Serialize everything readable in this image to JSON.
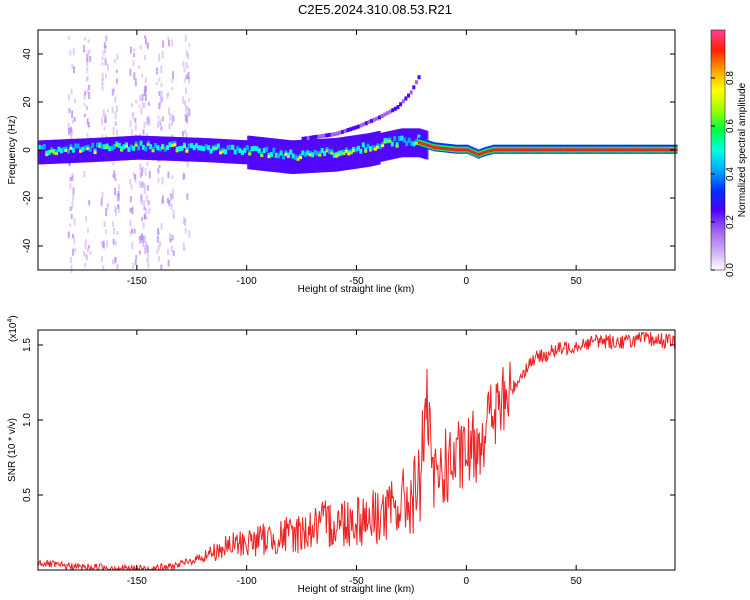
{
  "title": "C2E5.2024.310.08.53.R21",
  "colors": {
    "snr_line": "#ee2222",
    "ridge": "#ff1a1a",
    "colormap": [
      "#ffffff",
      "#c9a9f5",
      "#a060f0",
      "#4b00ff",
      "#0030ff",
      "#00aaff",
      "#00ffe0",
      "#00ff40",
      "#a0ff00",
      "#ffff00",
      "#ffa000",
      "#ff2000",
      "#ff40a0"
    ]
  },
  "chart_data": [
    {
      "type": "heatmap",
      "xlabel": "Height of straight line (km)",
      "ylabel": "Frequency (Hz)",
      "xlim": [
        -195,
        95
      ],
      "ylim": [
        -50,
        50
      ],
      "xticks": [
        -150,
        -100,
        -50,
        0,
        50
      ],
      "yticks": [
        -40,
        -20,
        0,
        20,
        40
      ],
      "ridge": {
        "x": [
          -195,
          -170,
          -150,
          -120,
          -100,
          -80,
          -60,
          -45,
          -30,
          -22,
          -15,
          -5,
          0,
          5,
          8,
          12,
          20,
          50,
          95
        ],
        "y": [
          -1,
          0,
          1,
          0,
          -1,
          -3,
          -2,
          0,
          3,
          3,
          1,
          0,
          0,
          -2,
          -1,
          0,
          0,
          0,
          0
        ]
      },
      "harmonic": {
        "x": [
          -75,
          -60,
          -50,
          -40,
          -32,
          -26,
          -22
        ],
        "y": [
          4,
          6,
          9,
          13,
          17,
          23,
          30
        ]
      }
    },
    {
      "type": "colorbar",
      "label": "Normalized spectral amplitude",
      "range": [
        0,
        1
      ],
      "ticks": [
        "0.0",
        "0.2",
        "0.4",
        "0.6",
        "0.8"
      ],
      "tick_values": [
        0.0,
        0.2,
        0.4,
        0.6,
        0.8
      ]
    },
    {
      "type": "line",
      "xlabel": "Height of straight line (km)",
      "ylabel": "SNR (10 * v/v)",
      "multiplier": "(x10",
      "multiplier_exp": "4",
      "xlim": [
        -195,
        95
      ],
      "ylim": [
        0,
        16000
      ],
      "xticks": [
        -150,
        -100,
        -50,
        0,
        50
      ],
      "yticks": [
        "0.5",
        "1.0",
        "1.5"
      ],
      "ytick_values": [
        5000,
        10000,
        15000
      ],
      "series": [
        {
          "x": [
            -195,
            -185,
            -175,
            -165,
            -155,
            -145,
            -135,
            -125,
            -115,
            -105,
            -95,
            -85,
            -75,
            -65,
            -55,
            -45,
            -35,
            -28,
            -22,
            -20,
            -18,
            -15,
            -12,
            -10,
            -5,
            0,
            5,
            10,
            15,
            20,
            25,
            30,
            40,
            50,
            60,
            70,
            80,
            90,
            95
          ],
          "y": [
            500,
            300,
            200,
            200,
            100,
            100,
            200,
            600,
            1200,
            1700,
            2000,
            2200,
            2500,
            3000,
            3300,
            3500,
            3800,
            4500,
            5200,
            8000,
            11000,
            5500,
            6500,
            6800,
            7200,
            7600,
            8500,
            10000,
            10800,
            11800,
            13000,
            14000,
            14600,
            15000,
            15300,
            15200,
            15400,
            15300,
            15200
          ]
        }
      ]
    }
  ]
}
